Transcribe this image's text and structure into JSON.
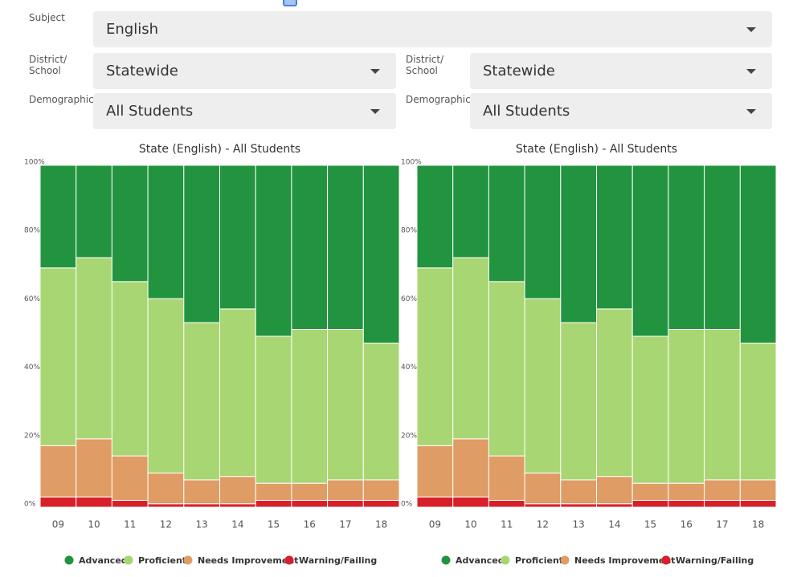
{
  "controls": {
    "subject": {
      "label": "Subject",
      "value": "English"
    },
    "left": {
      "district": {
        "label": "District/ School",
        "value": "Statewide"
      },
      "demographic": {
        "label": "Demographic",
        "value": "All Students"
      }
    },
    "right": {
      "district": {
        "label": "District/ School",
        "value": "Statewide"
      },
      "demographic": {
        "label": "Demographic",
        "value": "All Students"
      }
    }
  },
  "chart_data": [
    {
      "type": "bar",
      "stacked": true,
      "title": "State (English) - All Students",
      "categories": [
        "09",
        "10",
        "11",
        "12",
        "13",
        "14",
        "15",
        "16",
        "17",
        "18"
      ],
      "series": [
        {
          "name": "Advanced",
          "color": "#22933f",
          "values": [
            30,
            27,
            34,
            39,
            46,
            42,
            50,
            48,
            48,
            52
          ]
        },
        {
          "name": "Proficient",
          "color": "#a8d672",
          "values": [
            52,
            53,
            51,
            51,
            46,
            49,
            43,
            45,
            44,
            40
          ]
        },
        {
          "name": "Needs Improvement",
          "color": "#e09c65",
          "values": [
            15,
            17,
            13,
            9,
            7,
            8,
            5,
            5,
            6,
            6
          ]
        },
        {
          "name": "Warning/Failing",
          "color": "#d7202a",
          "values": [
            3,
            3,
            2,
            1,
            1,
            1,
            2,
            2,
            2,
            2
          ]
        }
      ],
      "ylim": [
        0,
        100
      ],
      "yticks": [
        {
          "value": 0,
          "label": "0%"
        },
        {
          "value": 20,
          "label": "20%"
        },
        {
          "value": 40,
          "label": "40%"
        },
        {
          "value": 60,
          "label": "60%"
        },
        {
          "value": 80,
          "label": "80%"
        },
        {
          "value": 100,
          "label": "100%"
        }
      ]
    },
    {
      "type": "bar",
      "stacked": true,
      "title": "State (English) - All Students",
      "categories": [
        "09",
        "10",
        "11",
        "12",
        "13",
        "14",
        "15",
        "16",
        "17",
        "18"
      ],
      "series": [
        {
          "name": "Advanced",
          "color": "#22933f",
          "values": [
            30,
            27,
            34,
            39,
            46,
            42,
            50,
            48,
            48,
            52
          ]
        },
        {
          "name": "Proficient",
          "color": "#a8d672",
          "values": [
            52,
            53,
            51,
            51,
            46,
            49,
            43,
            45,
            44,
            40
          ]
        },
        {
          "name": "Needs Improvement",
          "color": "#e09c65",
          "values": [
            15,
            17,
            13,
            9,
            7,
            8,
            5,
            5,
            6,
            6
          ]
        },
        {
          "name": "Warning/Failing",
          "color": "#d7202a",
          "values": [
            3,
            3,
            2,
            1,
            1,
            1,
            2,
            2,
            2,
            2
          ]
        }
      ],
      "ylim": [
        0,
        100
      ],
      "yticks": [
        {
          "value": 0,
          "label": "0%"
        },
        {
          "value": 20,
          "label": "20%"
        },
        {
          "value": 40,
          "label": "40%"
        },
        {
          "value": 60,
          "label": "60%"
        },
        {
          "value": 80,
          "label": "80%"
        },
        {
          "value": 100,
          "label": "100%"
        }
      ]
    }
  ]
}
